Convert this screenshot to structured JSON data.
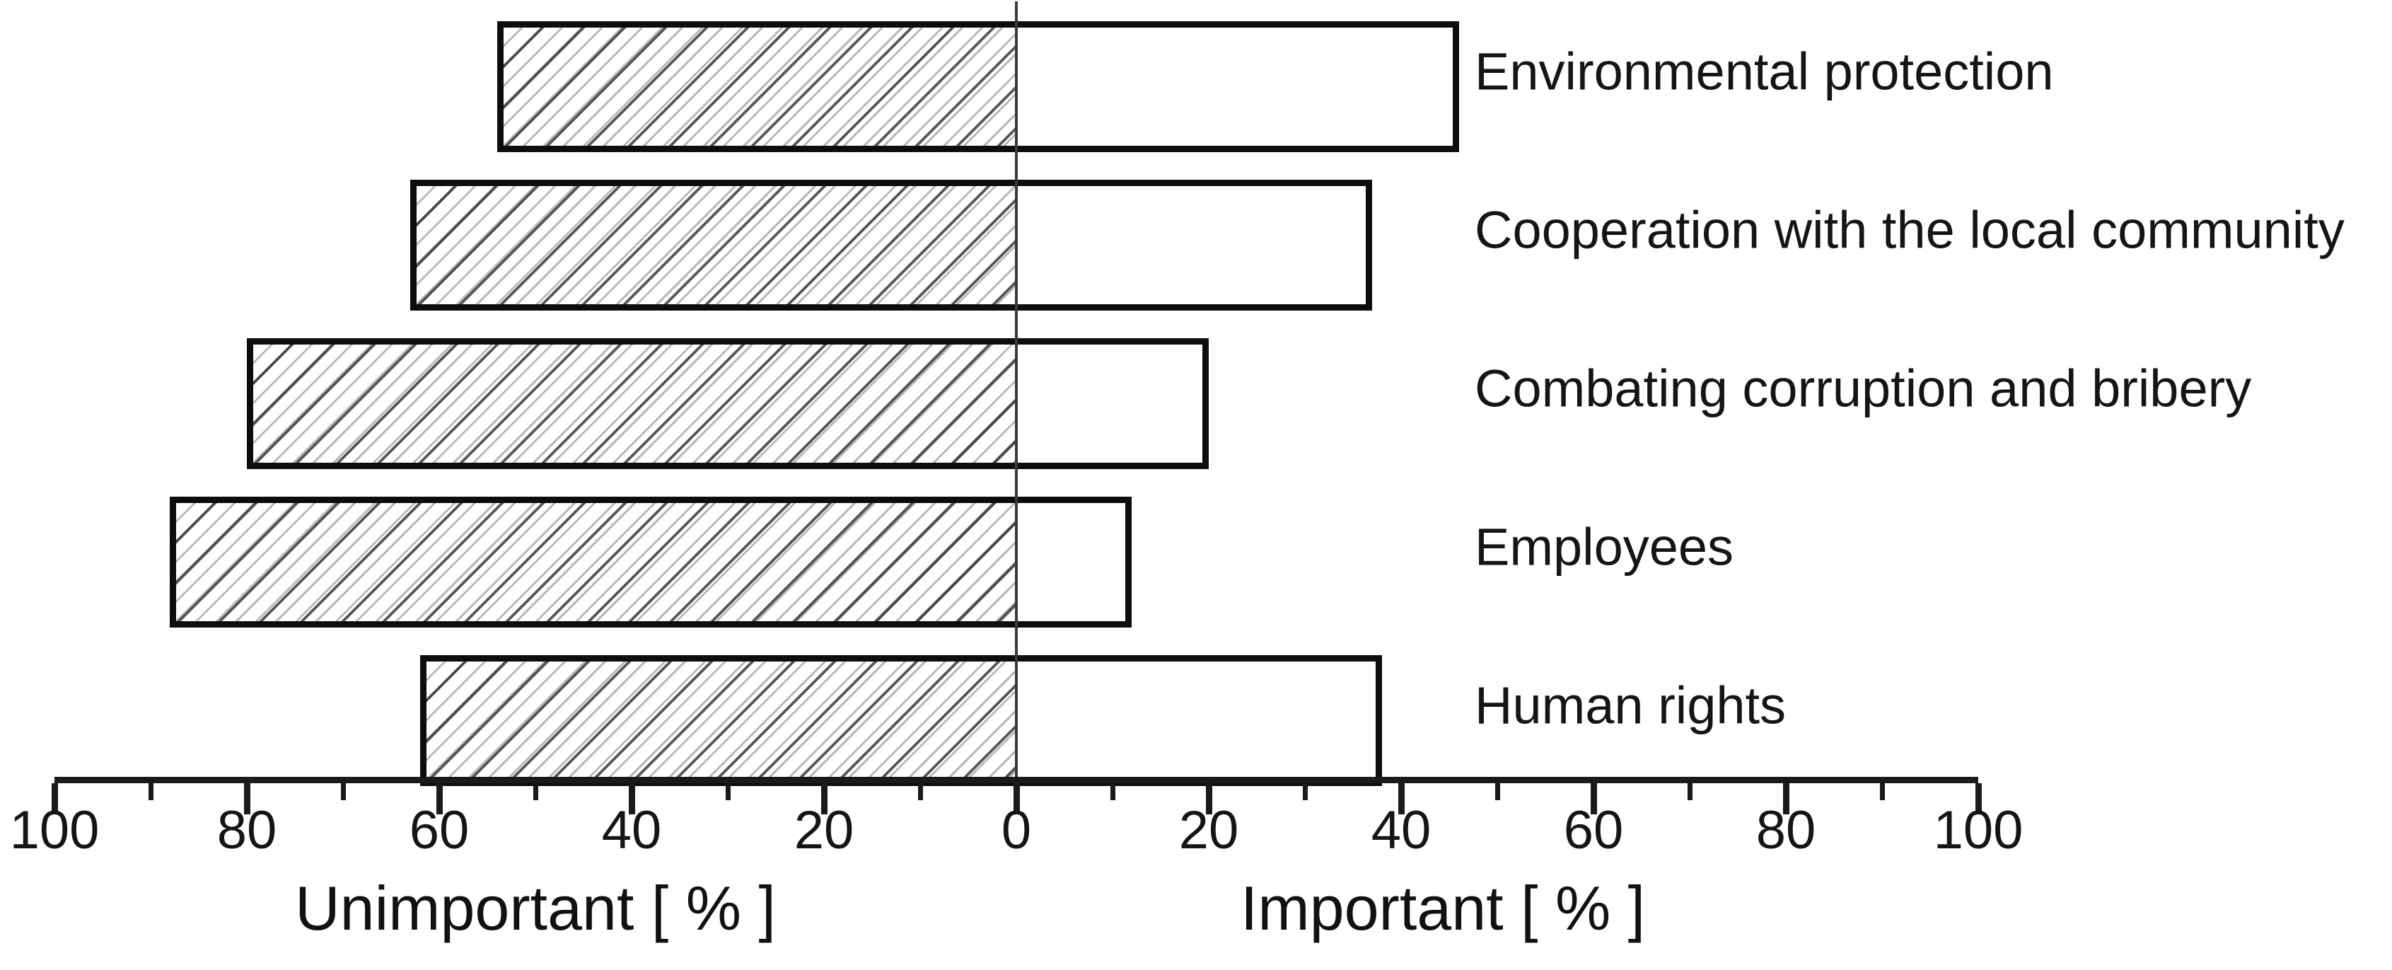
{
  "figure": {
    "background_color": "#ffffff",
    "text_color": "#1a1a1a",
    "bar_outline_color": "#0d0d0d"
  },
  "chart_data": {
    "type": "bar",
    "variant": "diverging-horizontal-tornado",
    "title": "",
    "categories": [
      "Environmental protection",
      "Cooperation with the local community",
      "Combating corruption and bribery",
      "Employees",
      "Human rights"
    ],
    "series": [
      {
        "name": "Unimportant",
        "side": "left",
        "fill": "diagonal-hatch",
        "values": [
          54,
          63,
          80,
          88,
          62
        ]
      },
      {
        "name": "Important",
        "side": "right",
        "fill": "white",
        "values": [
          46,
          37,
          20,
          12,
          38
        ]
      }
    ],
    "x_axis": {
      "left_title": "Unimportant [ % ]",
      "right_title": "Important [ % ]",
      "major_tick_labels": [
        "100",
        "80",
        "60",
        "40",
        "20",
        "0",
        "20",
        "40",
        "60",
        "80",
        "100"
      ],
      "major_tick_step": 20,
      "minor_tick_step": 10,
      "range_each_side": [
        0,
        100
      ]
    },
    "grid": false,
    "legend_position": "none",
    "hatch_pattern": "forward-slash"
  }
}
